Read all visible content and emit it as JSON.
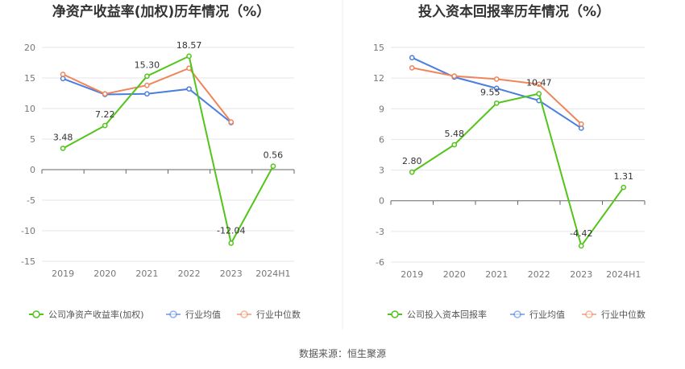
{
  "chart_data": [
    {
      "type": "line",
      "title": "净资产收益率(加权)历年情况（%）",
      "categories": [
        "2019",
        "2020",
        "2021",
        "2022",
        "2023",
        "2024H1"
      ],
      "ylim": [
        -15,
        20
      ],
      "yticks": [
        -15,
        -10,
        -5,
        0,
        5,
        10,
        15,
        20
      ],
      "grid": true,
      "legend_position": "bottom",
      "series": [
        {
          "name": "公司净资产收益率(加权)",
          "color": "#52c41a",
          "values": [
            3.48,
            7.22,
            15.3,
            18.57,
            -12.04,
            0.56
          ],
          "labels": [
            "3.48",
            "7.22",
            "15.30",
            "18.57",
            "-12.04",
            "0.56"
          ]
        },
        {
          "name": "行业均值",
          "color": "#4a7ee0",
          "values": [
            14.9,
            12.3,
            12.4,
            13.2,
            7.7,
            null
          ]
        },
        {
          "name": "行业中位数",
          "color": "#f0845a",
          "values": [
            15.6,
            12.4,
            13.8,
            16.6,
            7.8,
            null
          ]
        }
      ]
    },
    {
      "type": "line",
      "title": "投入资本回报率历年情况（%）",
      "categories": [
        "2019",
        "2020",
        "2021",
        "2022",
        "2023",
        "2024H1"
      ],
      "ylim": [
        -6,
        15
      ],
      "yticks": [
        -6,
        -3,
        0,
        3,
        6,
        9,
        12,
        15
      ],
      "grid": true,
      "legend_position": "bottom",
      "series": [
        {
          "name": "公司投入资本回报率",
          "color": "#52c41a",
          "values": [
            2.8,
            5.48,
            9.55,
            10.47,
            -4.42,
            1.31
          ],
          "labels": [
            "2.80",
            "5.48",
            "9.55",
            "10.47",
            "-4.42",
            "1.31"
          ]
        },
        {
          "name": "行业均值",
          "color": "#4a7ee0",
          "values": [
            14.0,
            12.1,
            11.0,
            9.8,
            7.1,
            null
          ]
        },
        {
          "name": "行业中位数",
          "color": "#f0845a",
          "values": [
            13.0,
            12.2,
            11.9,
            11.4,
            7.5,
            null
          ]
        }
      ]
    }
  ],
  "footer": {
    "source": "数据来源：恒生聚源"
  }
}
